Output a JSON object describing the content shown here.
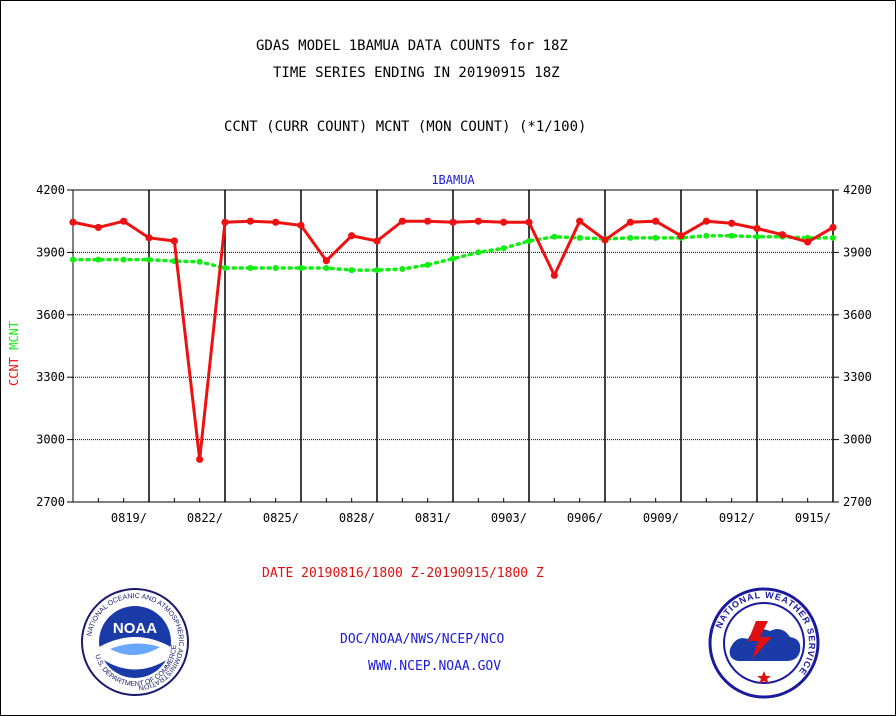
{
  "header": {
    "line1": "GDAS MODEL 1BAMUA DATA COUNTS for 18Z",
    "line2": "TIME SERIES ENDING IN 20190915 18Z",
    "line3": "CCNT (CURR COUNT) MCNT (MON COUNT) (*1/100)"
  },
  "footer": {
    "date_range": "DATE 20190816/1800 Z-20190915/1800 Z",
    "org": "DOC/NOAA/NWS/NCEP/NCO",
    "url": "WWW.NCEP.NOAA.GOV"
  },
  "logos": {
    "noaa_text": "NOAA",
    "noaa_ring": "NATIONAL OCEANIC AND ATMOSPHERIC ADMINISTRATION",
    "noaa_ring_bottom": "U.S. DEPARTMENT OF COMMERCE",
    "nws_ring": "NATIONAL WEATHER SERVICE"
  },
  "colors": {
    "ccnt": "#ee1111",
    "mcnt": "#11ee11",
    "title_blue": "#1a1ad6"
  },
  "chart_data": {
    "type": "line",
    "title": "1BAMUA",
    "ylabel_series": [
      "CCNT",
      "MCNT"
    ],
    "ylim": [
      2700,
      4200
    ],
    "yticks": [
      2700,
      3000,
      3300,
      3600,
      3900,
      4200
    ],
    "xlim": [
      0,
      30
    ],
    "xticks": [
      {
        "day": 3,
        "label": "0819/"
      },
      {
        "day": 6,
        "label": "0822/"
      },
      {
        "day": 9,
        "label": "0825/"
      },
      {
        "day": 12,
        "label": "0828/"
      },
      {
        "day": 15,
        "label": "0831/"
      },
      {
        "day": 18,
        "label": "0903/"
      },
      {
        "day": 21,
        "label": "0906/"
      },
      {
        "day": 24,
        "label": "0909/"
      },
      {
        "day": 27,
        "label": "0912/"
      },
      {
        "day": 30,
        "label": "0915/"
      }
    ],
    "grid": true,
    "series": [
      {
        "name": "CCNT",
        "color": "#ee1111",
        "x": [
          0,
          1,
          2,
          3,
          4,
          5,
          6,
          7,
          8,
          9,
          10,
          11,
          12,
          13,
          14,
          15,
          16,
          17,
          18,
          19,
          20,
          21,
          22,
          23,
          24,
          25,
          26,
          27,
          28,
          29,
          30
        ],
        "values": [
          4045,
          4020,
          4050,
          3970,
          3955,
          2905,
          4045,
          4050,
          4045,
          4030,
          3860,
          3980,
          3955,
          4050,
          4050,
          4045,
          4050,
          4045,
          4045,
          3790,
          4050,
          3960,
          4045,
          4050,
          3980,
          4050,
          4040,
          4015,
          3985,
          3950,
          4020
        ]
      },
      {
        "name": "MCNT",
        "color": "#11ee11",
        "x": [
          0,
          1,
          2,
          3,
          4,
          5,
          6,
          7,
          8,
          9,
          10,
          11,
          12,
          13,
          14,
          15,
          16,
          17,
          18,
          19,
          20,
          21,
          22,
          23,
          24,
          25,
          26,
          27,
          28,
          29,
          30
        ],
        "values": [
          3865,
          3865,
          3865,
          3865,
          3858,
          3855,
          3825,
          3825,
          3825,
          3825,
          3825,
          3815,
          3815,
          3820,
          3840,
          3870,
          3900,
          3920,
          3955,
          3975,
          3970,
          3965,
          3970,
          3970,
          3970,
          3980,
          3980,
          3975,
          3975,
          3970,
          3970
        ]
      }
    ]
  }
}
